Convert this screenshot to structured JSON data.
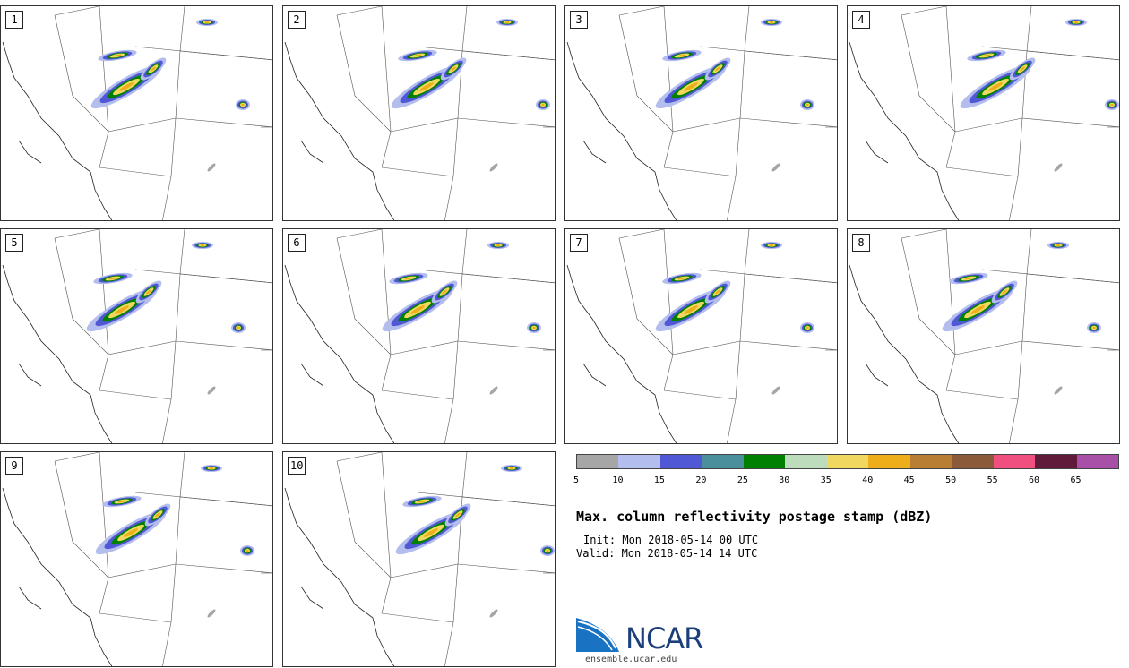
{
  "panels": [
    {
      "label": "1"
    },
    {
      "label": "2"
    },
    {
      "label": "3"
    },
    {
      "label": "4"
    },
    {
      "label": "5"
    },
    {
      "label": "6"
    },
    {
      "label": "7"
    },
    {
      "label": "8"
    },
    {
      "label": "9"
    },
    {
      "label": "10"
    }
  ],
  "legend": {
    "colors": [
      "#a6a6a6",
      "#b3bdee",
      "#5158d6",
      "#4b8f9c",
      "#008000",
      "#bcdcbc",
      "#f0d860",
      "#eeae1a",
      "#b87e34",
      "#8b5a3a",
      "#f05080",
      "#601a3a",
      "#a850a8"
    ],
    "ticks": [
      "5",
      "10",
      "15",
      "20",
      "25",
      "30",
      "35",
      "40",
      "45",
      "50",
      "55",
      "60",
      "65"
    ]
  },
  "title": "Max. column reflectivity postage stamp (dBZ)",
  "init": "Init: Mon 2018-05-14 00 UTC",
  "valid": "Valid: Mon 2018-05-14 14 UTC",
  "logo": {
    "text": "NCAR",
    "url": "ensemble.ucar.edu"
  }
}
